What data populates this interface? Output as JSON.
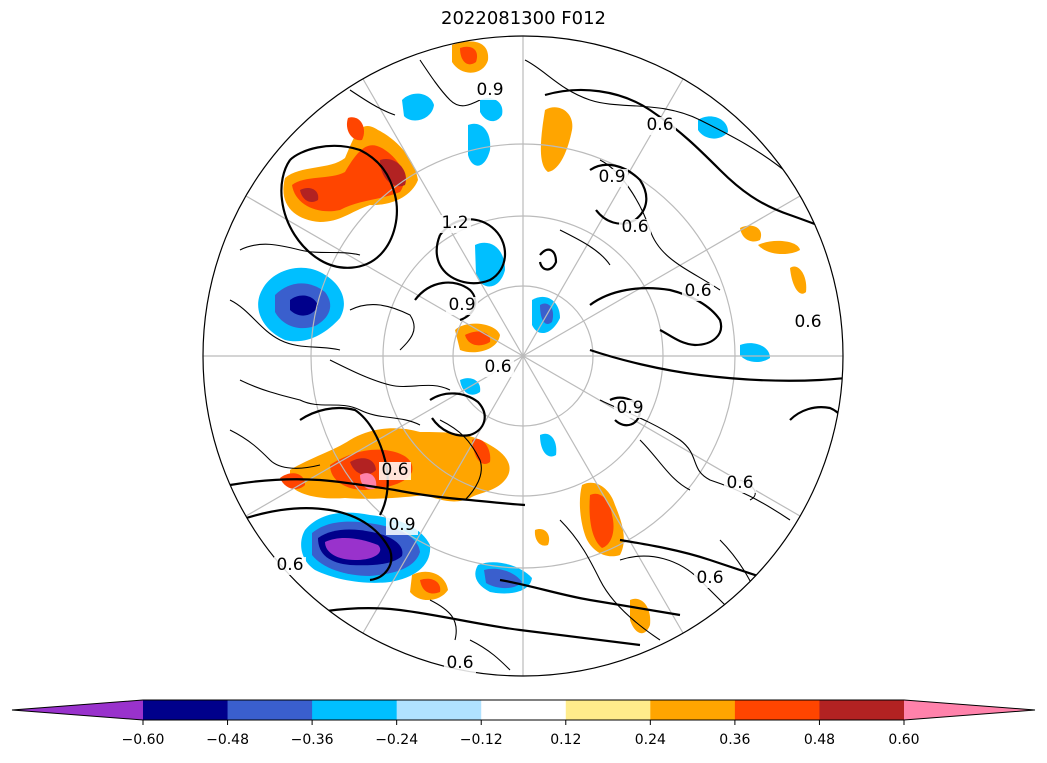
{
  "map": {
    "title": "2022081300 F012",
    "projection": "north polar stereographic",
    "contour_labels": [
      "0.9",
      "0.6",
      "0.9",
      "0.6",
      "1.2",
      "0.9",
      "0.6",
      "0.6",
      "0.6",
      "0.9",
      "0.6",
      "0.6",
      "0.9",
      "0.6",
      "0.6",
      "0.6"
    ]
  },
  "colorbar": {
    "extend": "both",
    "colors": [
      "#9932CC",
      "#00008B",
      "#3A5FCD",
      "#00BFFF",
      "#B0E2FF",
      "#FFFFFF",
      "#FFEC8B",
      "#FFA500",
      "#FF4500",
      "#B22222",
      "#FF82AB"
    ],
    "tick_labels": [
      "−0.60",
      "−0.48",
      "−0.36",
      "−0.24",
      "−0.12",
      "0.12",
      "0.24",
      "0.36",
      "0.48",
      "0.60"
    ]
  }
}
